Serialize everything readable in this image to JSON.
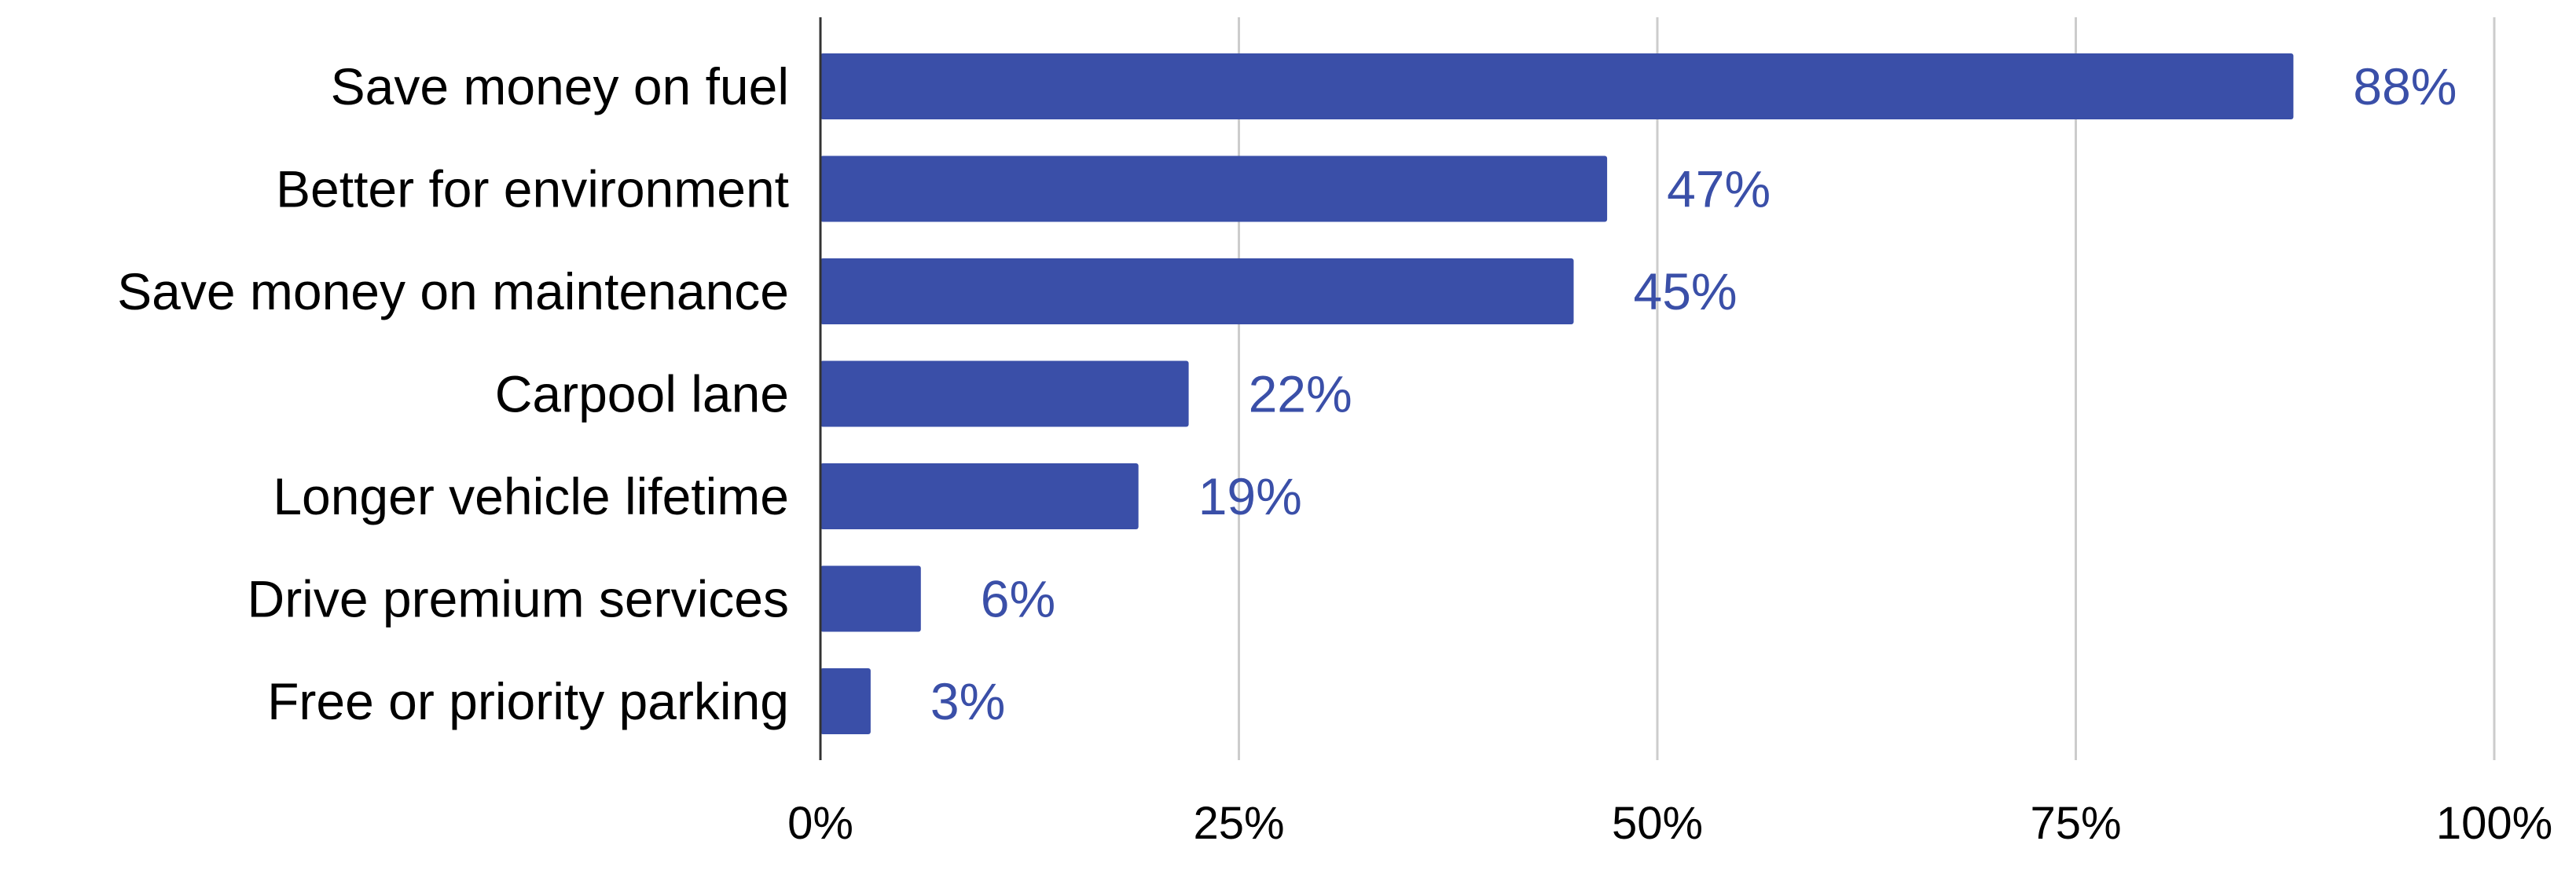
{
  "chart_data": {
    "type": "bar",
    "orientation": "horizontal",
    "categories": [
      "Save money on fuel",
      "Better for environment",
      "Save money on maintenance",
      "Carpool lane",
      "Longer vehicle lifetime",
      "Drive premium services",
      "Free or priority parking"
    ],
    "values": [
      88,
      47,
      45,
      22,
      19,
      6,
      3
    ],
    "data_labels": [
      "88%",
      "47%",
      "45%",
      "22%",
      "19%",
      "6%",
      "3%"
    ],
    "x_ticks": [
      "0%",
      "25%",
      "50%",
      "75%",
      "100%"
    ],
    "xlim": [
      0,
      100
    ],
    "grid": true,
    "legend": "none",
    "title": "",
    "xlabel": "",
    "ylabel": "",
    "colors": {
      "bar": "#3a4fa8",
      "data_label": "#3a4fa8",
      "gridline": "#cccccc",
      "axis": "#333333"
    }
  }
}
